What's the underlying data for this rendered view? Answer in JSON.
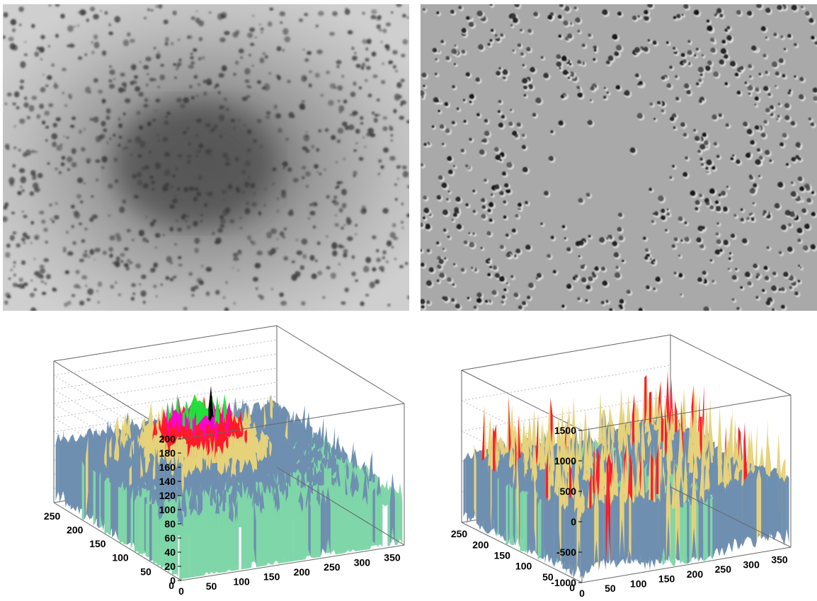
{
  "panels": [
    {
      "kind": "image",
      "description_tone": "grayscale-smooth"
    },
    {
      "kind": "image",
      "description_tone": "grayscale-highpass"
    }
  ],
  "chart_data": [
    {
      "type": "surface3d",
      "title": "",
      "z_ticks": [
        "0",
        "20",
        "40",
        "60",
        "80",
        "100",
        "120",
        "140",
        "160",
        "180",
        "200"
      ],
      "y_ticks": [
        "0",
        "50",
        "100",
        "150",
        "200",
        "250"
      ],
      "x_ticks": [
        "0",
        "50",
        "100",
        "150",
        "200",
        "250",
        "300",
        "350"
      ],
      "zlim": [
        0,
        200
      ],
      "ylim": [
        0,
        280
      ],
      "xlim": [
        0,
        370
      ],
      "colors": [
        "#ffffff",
        "#8a6a4a",
        "#7fd6a8",
        "#6f8fb0",
        "#e6d27a",
        "#ff1a2a",
        "#ff00d0",
        "#22e03a",
        "#000000"
      ]
    },
    {
      "type": "surface3d",
      "title": "",
      "z_ticks": [
        "-1000",
        "-500",
        "0",
        "500",
        "1000",
        "1500"
      ],
      "y_ticks": [
        "0",
        "50",
        "100",
        "150",
        "200",
        "250"
      ],
      "x_ticks": [
        "0",
        "50",
        "100",
        "150",
        "200",
        "250",
        "300",
        "350"
      ],
      "zlim": [
        -1100,
        1700
      ],
      "ylim": [
        0,
        280
      ],
      "xlim": [
        0,
        370
      ],
      "colors": [
        "#ffffff",
        "#8a6a4a",
        "#7fd6a8",
        "#6f8fb0",
        "#e6d27a",
        "#ff1a2a",
        "#22e03a"
      ]
    }
  ]
}
